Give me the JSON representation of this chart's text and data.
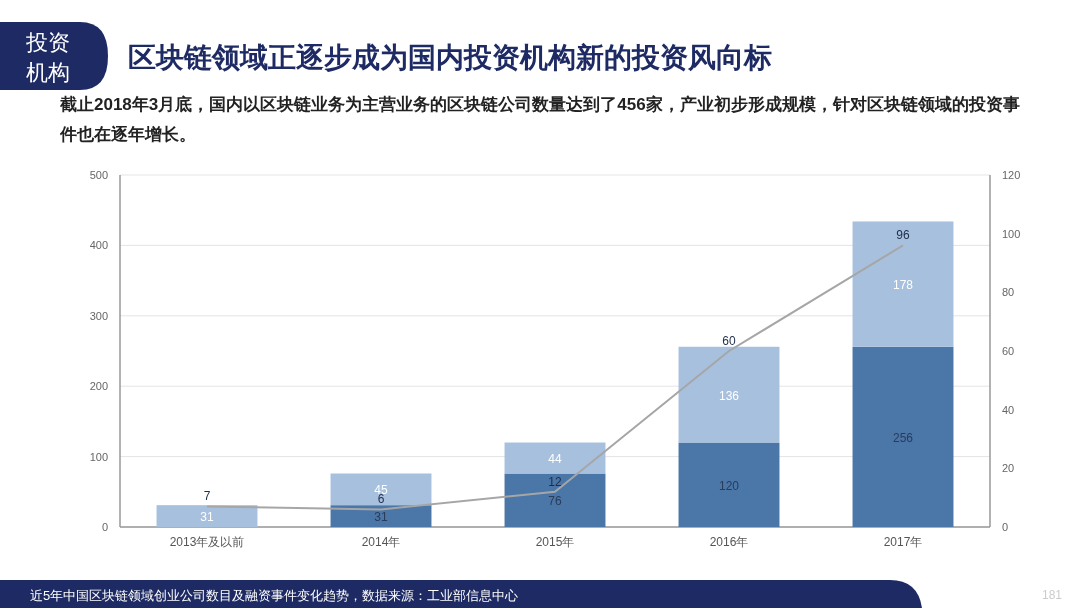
{
  "chart_data": {
    "type": "bar",
    "stacked": true,
    "title": "区块链领域正逐步成为国内投资机构新的投资风向标",
    "subtitle": "截止2018年3月底，国内以区块链业务为主营业务的区块链公司数量达到了456家，产业初步形成规模，针对区块链领域的投资事件也在逐年增长。",
    "categories": [
      "2013年及以前",
      "2014年",
      "2015年",
      "2016年",
      "2017年"
    ],
    "series": [
      {
        "color": "#4a76a8",
        "values": [
          null,
          31,
          76,
          120,
          256
        ]
      },
      {
        "color": "#a7c0de",
        "values": [
          31,
          45,
          44,
          136,
          178
        ]
      },
      {
        "type": "line",
        "axis": "y2",
        "color": "#a6a6a6",
        "values": [
          7,
          6,
          12,
          60,
          96
        ]
      }
    ],
    "ylim": [
      0,
      500
    ],
    "yticks": [
      0,
      100,
      200,
      300,
      400,
      500
    ],
    "y2lim": [
      0,
      120
    ],
    "y2ticks": [
      0,
      20,
      40,
      60,
      80,
      100,
      120
    ],
    "grid": "y",
    "data_labels": true,
    "annotations": [
      "投资机构",
      "近5年中国区块链领域创业公司数目及融资事件变化趋势，数据来源：工业部信息中心",
      "181"
    ]
  }
}
